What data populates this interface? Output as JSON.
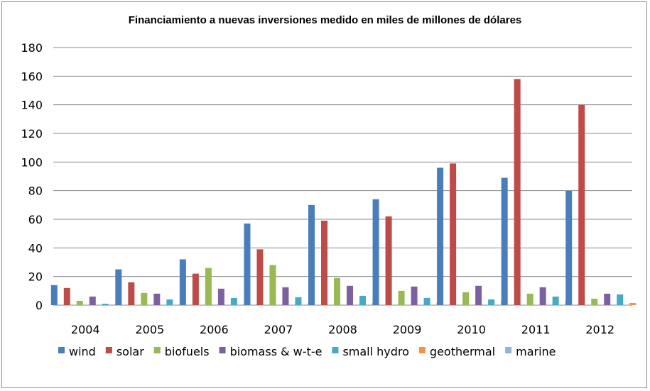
{
  "chart_data": {
    "type": "bar",
    "title": "Financiamiento a nuevas inversiones medido en miles de millones de dólares",
    "xlabel": "",
    "ylabel": "",
    "ylim": [
      0,
      180
    ],
    "yticks": [
      0,
      20,
      40,
      60,
      80,
      100,
      120,
      140,
      160,
      180
    ],
    "grid": true,
    "legend_position": "bottom",
    "categories": [
      "2004",
      "2005",
      "2006",
      "2007",
      "2008",
      "2009",
      "2010",
      "2011",
      "2012"
    ],
    "series": [
      {
        "name": "wind",
        "color": "#4a7ebb",
        "values": [
          14,
          25,
          32,
          57,
          70,
          74,
          96,
          89,
          80
        ]
      },
      {
        "name": "solar",
        "color": "#be4b48",
        "values": [
          12,
          16,
          22,
          39,
          59,
          62,
          99,
          158,
          140
        ]
      },
      {
        "name": "biofuels",
        "color": "#98b954",
        "values": [
          3,
          8.5,
          26,
          28,
          19,
          10,
          9,
          8,
          4.5
        ]
      },
      {
        "name": "biomass & w-t-e",
        "color": "#7d60a0",
        "values": [
          6,
          8,
          11.5,
          12.5,
          13.5,
          13,
          13.5,
          12.5,
          8
        ]
      },
      {
        "name": "small hydro",
        "color": "#46aac5",
        "values": [
          1,
          4,
          5,
          5.5,
          6.5,
          5,
          4,
          6,
          7.5
        ]
      },
      {
        "name": "geothermal",
        "color": "#f69240",
        "values": [
          1,
          0.5,
          1,
          1.5,
          1.5,
          2,
          3,
          3,
          1.5
        ]
      },
      {
        "name": "marine",
        "color": "#95b3d7",
        "values": [
          0,
          0,
          1,
          0.5,
          0,
          0,
          0,
          0,
          0
        ]
      }
    ]
  }
}
